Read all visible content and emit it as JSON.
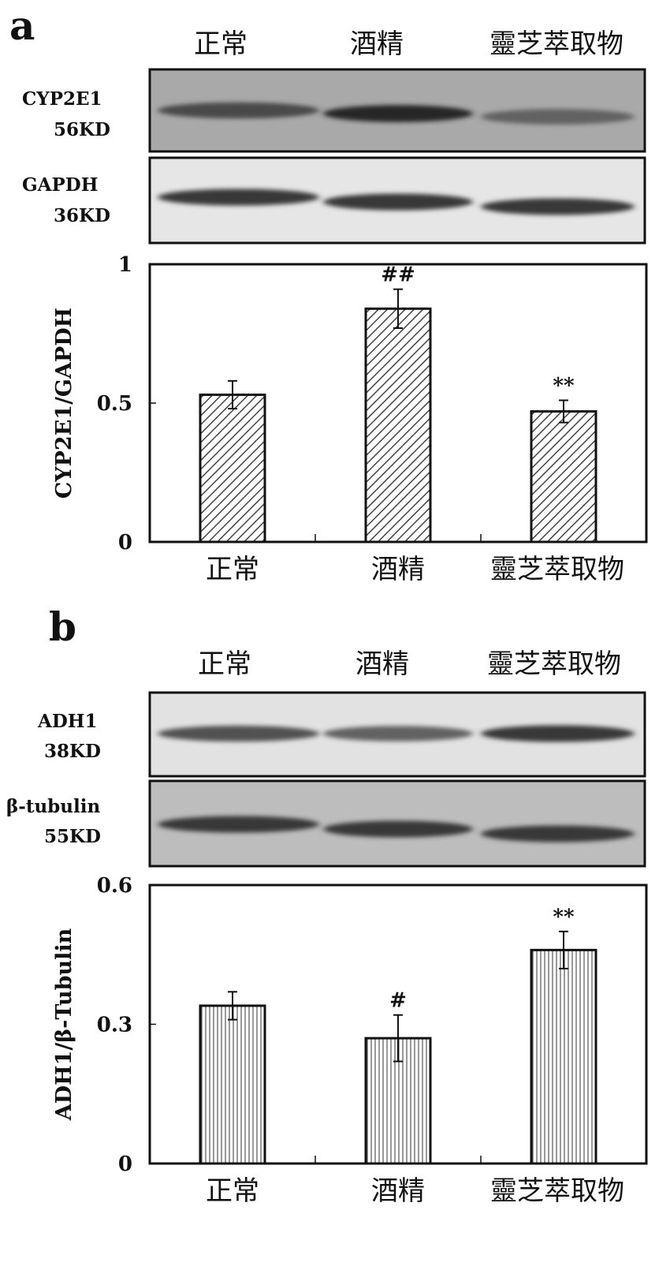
{
  "panel_a": {
    "letter": "a",
    "lane_labels": [
      "正常",
      "酒精",
      "靈芝萃取物"
    ],
    "blots": [
      {
        "protein": "CYP2E1",
        "size": "56KD",
        "band_intensity": [
          0.75,
          0.95,
          0.6
        ]
      },
      {
        "protein": "GAPDH",
        "size": "36KD",
        "band_intensity": [
          0.85,
          0.85,
          0.85
        ]
      }
    ]
  },
  "panel_b": {
    "letter": "b",
    "lane_labels": [
      "正常",
      "酒精",
      "靈芝萃取物"
    ],
    "blots": [
      {
        "protein": "ADH1",
        "size": "38KD",
        "band_intensity": [
          0.7,
          0.6,
          0.85
        ]
      },
      {
        "protein": "β-tubulin",
        "size": "55KD",
        "band_intensity": [
          0.85,
          0.85,
          0.85
        ]
      }
    ]
  },
  "chart_data": [
    {
      "type": "bar",
      "categories": [
        "正常",
        "酒精",
        "靈芝萃取物"
      ],
      "values": [
        0.53,
        0.84,
        0.47
      ],
      "error": [
        0.05,
        0.07,
        0.04
      ],
      "annotations": [
        "",
        "##",
        "**"
      ],
      "ylabel": "CYP2E1/GAPDH",
      "ylim": [
        0,
        1
      ],
      "yticks": [
        "0",
        "0.5",
        "1"
      ],
      "pattern": "diagonal-hatch",
      "grid": false
    },
    {
      "type": "bar",
      "categories": [
        "正常",
        "酒精",
        "靈芝萃取物"
      ],
      "values": [
        0.34,
        0.27,
        0.46
      ],
      "error": [
        0.03,
        0.05,
        0.04
      ],
      "annotations": [
        "",
        "#",
        "**"
      ],
      "ylabel": "ADH1/β-Tubulin",
      "ylim": [
        0,
        0.6
      ],
      "yticks": [
        "0",
        "0.3",
        "0.6"
      ],
      "pattern": "vertical-lines",
      "grid": false
    }
  ]
}
